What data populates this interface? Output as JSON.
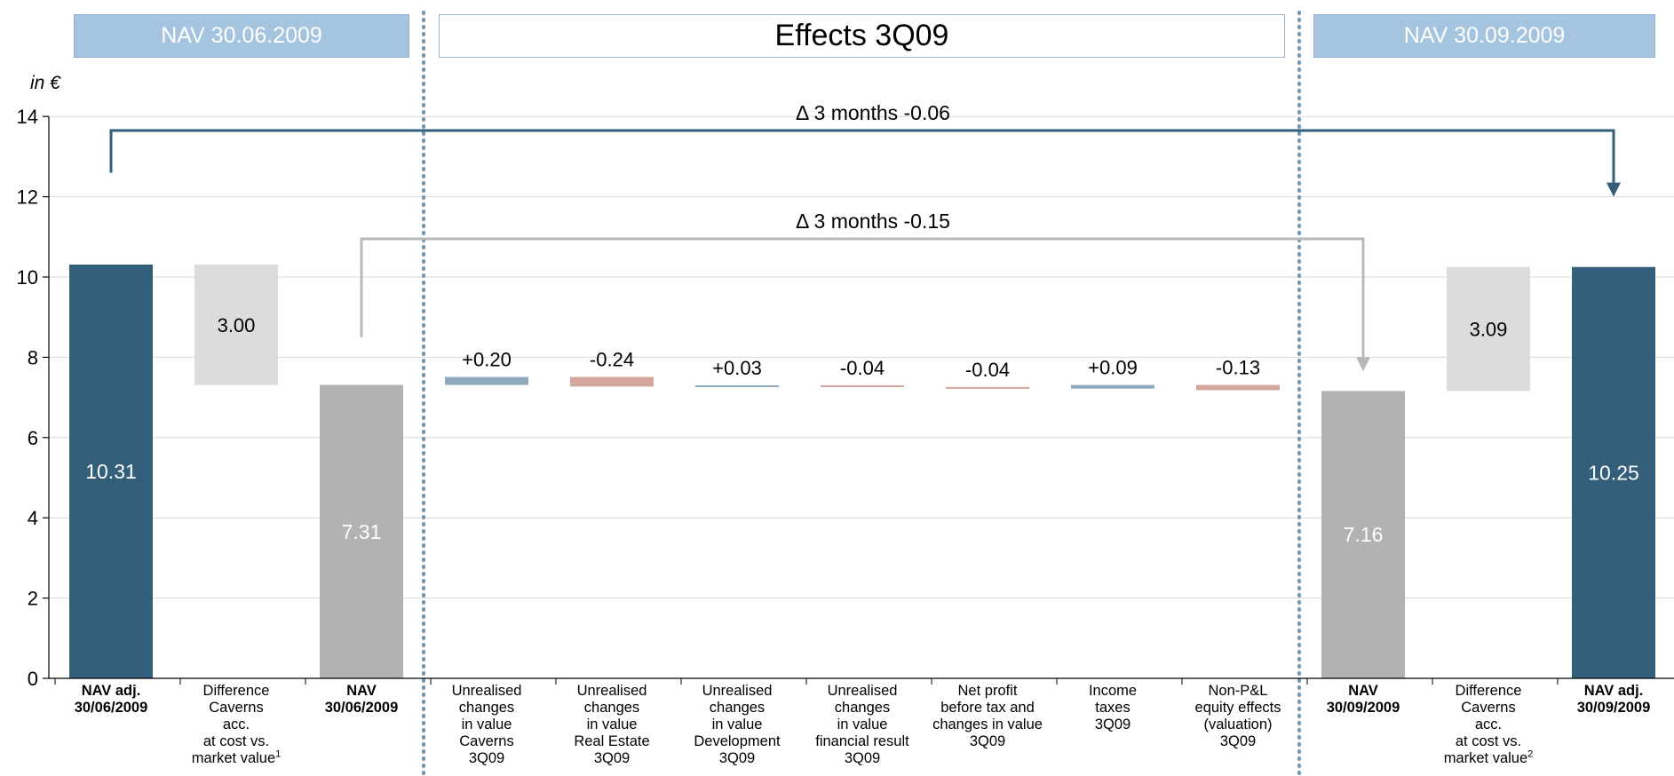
{
  "headers": {
    "left": "NAV 30.06.2009",
    "center": "Effects 3Q09",
    "right": "NAV 30.09.2009"
  },
  "unit_label": "in €",
  "colors": {
    "nav_adj": "#335f7b",
    "nav": "#b2b2b2",
    "caverns_diff": "#dcdcdc",
    "positive": "#8faabd",
    "negative": "#d2a79e",
    "arrow_top": "#335f7b",
    "arrow_mid": "#b8b8b8",
    "divider": "#6f97b9"
  },
  "chart_data": {
    "type": "bar",
    "subtype": "waterfall",
    "ylim": [
      0,
      14
    ],
    "yticks": [
      "0",
      "2",
      "4",
      "6",
      "8",
      "10",
      "12",
      "14"
    ],
    "grid": true,
    "categories": [
      {
        "lines": [
          "NAV adj.",
          "30/06/2009"
        ],
        "bold": true
      },
      {
        "lines": [
          "Difference",
          "Caverns",
          "acc.",
          "at cost vs.",
          "market value"
        ],
        "sup": "1"
      },
      {
        "lines": [
          "NAV",
          "30/06/2009"
        ],
        "bold": true
      },
      {
        "lines": [
          "Unrealised",
          "changes",
          "in value",
          "Caverns",
          "3Q09"
        ]
      },
      {
        "lines": [
          "Unrealised",
          "changes",
          "in value",
          "Real Estate",
          "3Q09"
        ]
      },
      {
        "lines": [
          "Unrealised",
          "changes",
          "in value",
          "Development",
          "3Q09"
        ]
      },
      {
        "lines": [
          "Unrealised",
          "changes",
          "in value",
          "financial result",
          "3Q09"
        ]
      },
      {
        "lines": [
          "Net profit",
          "before tax and",
          "changes in value",
          "3Q09"
        ]
      },
      {
        "lines": [
          "Income",
          "taxes",
          "3Q09"
        ]
      },
      {
        "lines": [
          "Non-P&L",
          "equity effects",
          "(valuation)",
          "3Q09"
        ]
      },
      {
        "lines": [
          "NAV",
          "30/09/2009"
        ],
        "bold": true
      },
      {
        "lines": [
          "Difference",
          "Caverns",
          "acc.",
          "at cost vs.",
          "market value"
        ],
        "sup": "2"
      },
      {
        "lines": [
          "NAV adj.",
          "30/09/2009"
        ],
        "bold": true
      }
    ],
    "bars": [
      {
        "low": 0,
        "high": 10.31,
        "label": "10.31",
        "kind": "nav_adj",
        "label_pos": "inside"
      },
      {
        "low": 7.31,
        "high": 10.31,
        "label": "3.00",
        "kind": "caverns_diff",
        "label_pos": "inside"
      },
      {
        "low": 0,
        "high": 7.31,
        "label": "7.31",
        "kind": "nav",
        "label_pos": "inside"
      },
      {
        "low": 7.31,
        "high": 7.51,
        "label": "+0.20",
        "kind": "positive",
        "label_pos": "above"
      },
      {
        "low": 7.27,
        "high": 7.51,
        "label": "-0.24",
        "kind": "negative",
        "label_pos": "above"
      },
      {
        "low": 7.27,
        "high": 7.3,
        "label": "+0.03",
        "kind": "positive",
        "label_pos": "above"
      },
      {
        "low": 7.26,
        "high": 7.3,
        "label": "-0.04",
        "kind": "negative",
        "label_pos": "above"
      },
      {
        "low": 7.22,
        "high": 7.26,
        "label": "-0.04",
        "kind": "negative",
        "label_pos": "above"
      },
      {
        "low": 7.22,
        "high": 7.31,
        "label": "+0.09",
        "kind": "positive",
        "label_pos": "above"
      },
      {
        "low": 7.18,
        "high": 7.31,
        "label": "-0.13",
        "kind": "negative",
        "label_pos": "above"
      },
      {
        "low": 0,
        "high": 7.16,
        "label": "7.16",
        "kind": "nav",
        "label_pos": "inside"
      },
      {
        "low": 7.16,
        "high": 10.25,
        "label": "3.09",
        "kind": "caverns_diff",
        "label_pos": "inside"
      },
      {
        "low": 0,
        "high": 10.25,
        "label": "10.25",
        "kind": "nav_adj",
        "label_pos": "inside"
      }
    ],
    "annotations": [
      {
        "text": "Δ 3 months -0.06",
        "from_bar": 0,
        "to_bar": 12,
        "level": 13.65,
        "start_value": 12.6,
        "end_value": 12.0,
        "style": "top"
      },
      {
        "text": "Δ 3 months -0.15",
        "from_bar": 2,
        "to_bar": 10,
        "level": 10.95,
        "start_value": 8.5,
        "end_value": 7.65,
        "style": "mid"
      }
    ]
  }
}
